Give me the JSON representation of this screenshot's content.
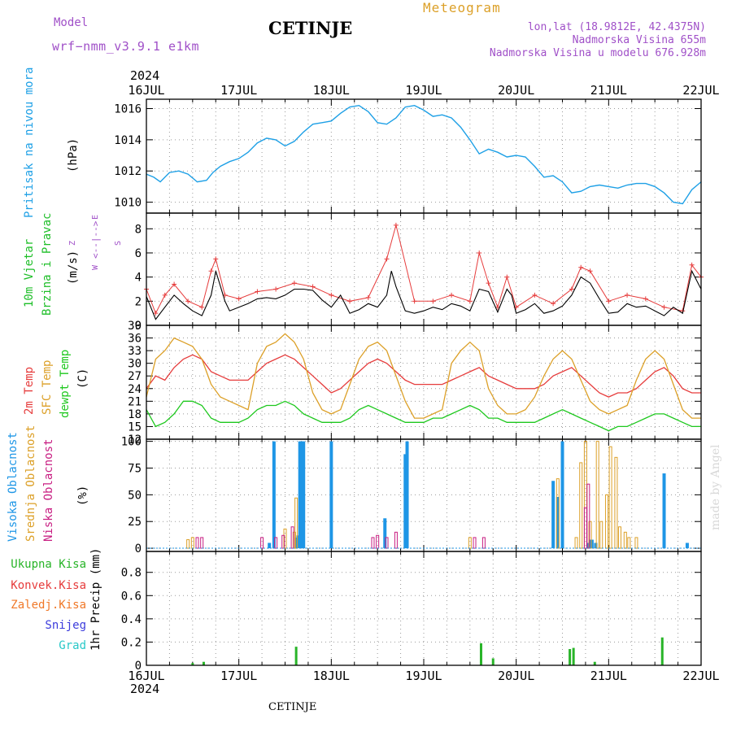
{
  "header": {
    "model_label": "Model",
    "model_value": "wrf−nmm_v3.9.1  e1km",
    "station": "CETINJE",
    "product": "Meteogram",
    "lonlat": "lon,lat (18.9812E, 42.4375N)",
    "elevation": "Nadmorska Visina 655m",
    "model_elevation": "Nadmorska Visina u modelu 676.928m",
    "year_top": "2024",
    "year_bottom": "2024",
    "footer_station": "CETINJE",
    "watermark": "made by Angel"
  },
  "colors": {
    "pressure": "#1ea0e6",
    "wind_label": "#1ebe28",
    "temp2m": "#e63c3c",
    "sfc": "#dca028",
    "dewpt": "#1ec81e",
    "high_cloud": "#1e96e6",
    "mid_cloud": "#dca028",
    "low_cloud": "#c81e82",
    "total_precip": "#28b428",
    "conv_precip": "#e63c3c",
    "frozen_precip": "#f07828",
    "snow": "#3c3cdc",
    "hail": "#28c8c8",
    "compass": "#a050c8"
  },
  "chart_data": [
    {
      "type": "line",
      "panel": "pressure",
      "ylabel_name": "Pritisak na nivou mora",
      "unit": "(hPa)",
      "x_ticks": [
        "16JUL",
        "17JUL",
        "18JUL",
        "19JUL",
        "20JUL",
        "21JUL",
        "22JUL"
      ],
      "xlim_days": [
        0,
        6
      ],
      "ylim": [
        1009.3,
        1016.6
      ],
      "y_ticks": [
        1010,
        1012,
        1014,
        1016
      ],
      "grid": true,
      "series": [
        {
          "x": [
            0,
            0.08,
            0.15,
            0.25,
            0.35,
            0.45,
            0.55,
            0.65,
            0.72,
            0.8,
            0.9,
            1.0,
            1.1,
            1.2,
            1.3,
            1.4,
            1.5,
            1.6,
            1.7,
            1.8,
            1.9,
            2.0,
            2.1,
            2.2,
            2.3,
            2.4,
            2.5,
            2.6,
            2.7,
            2.8,
            2.9,
            3.0,
            3.1,
            3.2,
            3.3,
            3.4,
            3.5,
            3.6,
            3.7,
            3.8,
            3.9,
            4.0,
            4.1,
            4.2,
            4.3,
            4.4,
            4.5,
            4.6,
            4.7,
            4.8,
            4.9,
            5.0,
            5.1,
            5.2,
            5.3,
            5.4,
            5.5,
            5.6,
            5.7,
            5.8,
            5.9,
            6.0
          ],
          "y": [
            1011.8,
            1011.6,
            1011.3,
            1011.9,
            1012.0,
            1011.8,
            1011.3,
            1011.4,
            1011.9,
            1012.3,
            1012.6,
            1012.8,
            1013.2,
            1013.8,
            1014.1,
            1014.0,
            1013.6,
            1013.9,
            1014.5,
            1015.0,
            1015.1,
            1015.2,
            1015.7,
            1016.1,
            1016.2,
            1015.8,
            1015.1,
            1015.0,
            1015.4,
            1016.1,
            1016.2,
            1015.9,
            1015.5,
            1015.6,
            1015.4,
            1014.8,
            1014.0,
            1013.1,
            1013.4,
            1013.2,
            1012.9,
            1013.0,
            1012.9,
            1012.3,
            1011.6,
            1011.7,
            1011.3,
            1010.6,
            1010.7,
            1011.0,
            1011.1,
            1011.0,
            1010.9,
            1011.1,
            1011.2,
            1011.2,
            1011.0,
            1010.6,
            1010.0,
            1009.9,
            1010.8,
            1011.3
          ]
        }
      ]
    },
    {
      "type": "line",
      "panel": "wind",
      "ylabel_name": "10m Vjetar",
      "ylabel_name2": "Brzina i Pravac",
      "unit": "(m/s)",
      "compass": {
        "n": "Z",
        "e": "E",
        "w": "W",
        "s": "S"
      },
      "ylim": [
        0,
        9.3
      ],
      "y_ticks": [
        0,
        2,
        4,
        6,
        8
      ],
      "grid": true,
      "series": [
        {
          "name": "speed",
          "x": [
            0,
            0.1,
            0.2,
            0.3,
            0.4,
            0.5,
            0.6,
            0.7,
            0.75,
            0.85,
            0.9,
            1.0,
            1.1,
            1.2,
            1.3,
            1.4,
            1.5,
            1.6,
            1.7,
            1.8,
            1.9,
            2.0,
            2.1,
            2.2,
            2.3,
            2.4,
            2.5,
            2.6,
            2.65,
            2.7,
            2.8,
            2.9,
            3.0,
            3.1,
            3.2,
            3.3,
            3.4,
            3.5,
            3.6,
            3.7,
            3.8,
            3.9,
            3.95,
            4.0,
            4.1,
            4.2,
            4.3,
            4.4,
            4.5,
            4.6,
            4.7,
            4.8,
            4.9,
            5.0,
            5.1,
            5.2,
            5.3,
            5.4,
            5.5,
            5.6,
            5.7,
            5.8,
            5.9,
            6.0
          ],
          "y": [
            2.4,
            0.5,
            1.5,
            2.5,
            1.8,
            1.2,
            0.8,
            2.5,
            4.5,
            2.0,
            1.2,
            1.5,
            1.8,
            2.2,
            2.3,
            2.2,
            2.5,
            3.0,
            3.0,
            2.9,
            2.1,
            1.5,
            2.5,
            1.0,
            1.3,
            1.8,
            1.5,
            2.5,
            4.5,
            3.2,
            1.2,
            1.0,
            1.2,
            1.5,
            1.3,
            1.8,
            1.6,
            1.2,
            3.0,
            2.8,
            1.1,
            3.0,
            2.5,
            1.0,
            1.3,
            1.8,
            1.0,
            1.2,
            1.6,
            2.5,
            4.0,
            3.5,
            2.2,
            1.0,
            1.1,
            1.8,
            1.5,
            1.6,
            1.2,
            0.8,
            1.5,
            1.0,
            4.5,
            3.0
          ]
        },
        {
          "name": "gust",
          "x": [
            0,
            0.1,
            0.2,
            0.3,
            0.45,
            0.6,
            0.7,
            0.75,
            0.85,
            1.0,
            1.2,
            1.4,
            1.6,
            1.8,
            2.0,
            2.2,
            2.4,
            2.6,
            2.7,
            2.9,
            3.1,
            3.3,
            3.5,
            3.6,
            3.7,
            3.8,
            3.9,
            4.0,
            4.2,
            4.4,
            4.6,
            4.7,
            4.8,
            5.0,
            5.2,
            5.4,
            5.6,
            5.8,
            5.9,
            6.0
          ],
          "y": [
            3.0,
            1.0,
            2.5,
            3.4,
            2.0,
            1.5,
            4.5,
            5.5,
            2.5,
            2.2,
            2.8,
            3.0,
            3.5,
            3.2,
            2.5,
            2.0,
            2.3,
            5.5,
            8.3,
            2.0,
            2.0,
            2.5,
            2.0,
            6.0,
            3.5,
            1.5,
            4.0,
            1.5,
            2.5,
            1.8,
            3.0,
            4.8,
            4.5,
            2.0,
            2.5,
            2.2,
            1.5,
            1.2,
            5.0,
            4.0
          ]
        }
      ]
    },
    {
      "type": "line",
      "panel": "temperature",
      "ylabel_names": [
        "2m Temp",
        "SFC Temp",
        "dewpt Temp"
      ],
      "unit": "(C)",
      "ylim": [
        12,
        39
      ],
      "y_ticks": [
        12,
        15,
        18,
        21,
        24,
        27,
        30,
        33,
        36,
        39
      ],
      "grid": true,
      "series": [
        {
          "name": "2m Temp",
          "x": [
            0,
            0.1,
            0.2,
            0.3,
            0.4,
            0.5,
            0.6,
            0.7,
            0.8,
            0.9,
            1.0,
            1.1,
            1.2,
            1.3,
            1.4,
            1.5,
            1.6,
            1.7,
            1.8,
            1.9,
            2.0,
            2.1,
            2.2,
            2.3,
            2.4,
            2.5,
            2.6,
            2.7,
            2.8,
            2.9,
            3.0,
            3.1,
            3.2,
            3.3,
            3.4,
            3.5,
            3.6,
            3.7,
            3.8,
            3.9,
            4.0,
            4.1,
            4.2,
            4.3,
            4.4,
            4.5,
            4.6,
            4.7,
            4.8,
            4.9,
            5.0,
            5.1,
            5.2,
            5.3,
            5.4,
            5.5,
            5.6,
            5.7,
            5.8,
            5.9,
            6.0
          ],
          "y": [
            24,
            27,
            26,
            29,
            31,
            32,
            31,
            28,
            27,
            26,
            26,
            26,
            28,
            30,
            31,
            32,
            31,
            29,
            27,
            25,
            23,
            24,
            26,
            28,
            30,
            31,
            30,
            28,
            26,
            25,
            25,
            25,
            25,
            26,
            27,
            28,
            29,
            27,
            26,
            25,
            24,
            24,
            24,
            25,
            27,
            28,
            29,
            27,
            25,
            23,
            22,
            23,
            23,
            24,
            26,
            28,
            29,
            27,
            24,
            23,
            23
          ]
        },
        {
          "name": "SFC Temp",
          "x": [
            0,
            0.1,
            0.2,
            0.3,
            0.4,
            0.5,
            0.6,
            0.7,
            0.8,
            0.9,
            1.0,
            1.1,
            1.2,
            1.3,
            1.4,
            1.5,
            1.6,
            1.7,
            1.8,
            1.9,
            2.0,
            2.1,
            2.2,
            2.3,
            2.4,
            2.5,
            2.6,
            2.7,
            2.8,
            2.9,
            3.0,
            3.1,
            3.2,
            3.3,
            3.4,
            3.5,
            3.6,
            3.7,
            3.8,
            3.9,
            4.0,
            4.1,
            4.2,
            4.3,
            4.4,
            4.5,
            4.6,
            4.7,
            4.8,
            4.9,
            5.0,
            5.1,
            5.2,
            5.3,
            5.4,
            5.5,
            5.6,
            5.7,
            5.8,
            5.9,
            6.0
          ],
          "y": [
            22,
            31,
            33,
            36,
            35,
            34,
            31,
            25,
            22,
            21,
            20,
            19,
            30,
            34,
            35,
            37,
            35,
            31,
            23,
            19,
            18,
            19,
            25,
            31,
            34,
            35,
            33,
            27,
            21,
            17,
            17,
            18,
            19,
            30,
            33,
            35,
            33,
            24,
            20,
            18,
            18,
            19,
            22,
            27,
            31,
            33,
            31,
            26,
            21,
            19,
            18,
            19,
            20,
            26,
            31,
            33,
            31,
            25,
            19,
            17,
            17
          ]
        },
        {
          "name": "dewpt Temp",
          "x": [
            0,
            0.1,
            0.2,
            0.3,
            0.4,
            0.5,
            0.6,
            0.7,
            0.8,
            0.9,
            1.0,
            1.1,
            1.2,
            1.3,
            1.4,
            1.5,
            1.6,
            1.7,
            1.8,
            1.9,
            2.0,
            2.1,
            2.2,
            2.3,
            2.4,
            2.5,
            2.6,
            2.7,
            2.8,
            2.9,
            3.0,
            3.1,
            3.2,
            3.3,
            3.4,
            3.5,
            3.6,
            3.7,
            3.8,
            3.9,
            4.0,
            4.1,
            4.2,
            4.3,
            4.4,
            4.5,
            4.6,
            4.7,
            4.8,
            4.9,
            5.0,
            5.1,
            5.2,
            5.3,
            5.4,
            5.5,
            5.6,
            5.7,
            5.8,
            5.9,
            6.0
          ],
          "y": [
            19,
            15,
            16,
            18,
            21,
            21,
            20,
            17,
            16,
            16,
            16,
            17,
            19,
            20,
            20,
            21,
            20,
            18,
            17,
            16,
            16,
            16,
            17,
            19,
            20,
            19,
            18,
            17,
            16,
            16,
            16,
            17,
            17,
            18,
            19,
            20,
            19,
            17,
            17,
            16,
            16,
            16,
            16,
            17,
            18,
            19,
            18,
            17,
            16,
            15,
            14,
            15,
            15,
            16,
            17,
            18,
            18,
            17,
            16,
            15,
            15
          ]
        }
      ]
    },
    {
      "type": "bar",
      "panel": "cloud",
      "ylabel_names": [
        "Visoka Oblacnost",
        "Srednja Oblacnost",
        "Niska Oblacnost"
      ],
      "unit": "(%)",
      "ylim": [
        -3,
        102
      ],
      "y_ticks": [
        0,
        25,
        50,
        75,
        100
      ],
      "grid": true,
      "series": [
        {
          "name": "Visoka Oblacnost",
          "x": [
            1.33,
            1.38,
            1.62,
            1.64,
            1.66,
            1.68,
            1.7,
            2.0,
            2.58,
            2.8,
            2.82,
            4.4,
            4.45,
            4.5,
            4.78,
            4.8,
            4.82,
            4.86,
            5.17,
            5.22,
            5.28,
            5.34,
            5.6,
            5.62,
            5.85,
            6.0
          ],
          "y": [
            5,
            100,
            10,
            12,
            100,
            100,
            100,
            100,
            28,
            88,
            100,
            63,
            48,
            100,
            5,
            8,
            8,
            5,
            0,
            0,
            0,
            0,
            70,
            0,
            5,
            0
          ]
        },
        {
          "name": "Srednja Oblacnost",
          "x": [
            0.45,
            0.5,
            1.5,
            1.6,
            1.62,
            3.5,
            4.45,
            4.65,
            4.7,
            4.75,
            4.8,
            4.88,
            4.92,
            4.98,
            5.02,
            5.08,
            5.12,
            5.18,
            5.22,
            5.3
          ],
          "y": [
            8,
            10,
            18,
            15,
            47,
            10,
            65,
            10,
            80,
            100,
            25,
            100,
            25,
            50,
            95,
            85,
            20,
            15,
            10,
            10
          ]
        },
        {
          "name": "Niska Oblacnost",
          "x": [
            0.55,
            0.6,
            1.25,
            1.4,
            1.48,
            1.58,
            2.45,
            2.5,
            2.6,
            2.7,
            3.55,
            3.65,
            4.75,
            4.78
          ],
          "y": [
            10,
            10,
            10,
            10,
            12,
            20,
            10,
            12,
            10,
            15,
            10,
            10,
            38,
            60
          ]
        }
      ]
    },
    {
      "type": "bar",
      "panel": "precip",
      "ylabel_names": [
        "Ukupna Kisa",
        "Konvek.Kisa",
        "Zaledj.Kisa",
        "Snijeg",
        "Grad"
      ],
      "unit": "1hr Precip (mm)",
      "ylim": [
        0,
        0.98
      ],
      "y_ticks": [
        0,
        0.2,
        0.4,
        0.6,
        0.8
      ],
      "grid": true,
      "series": [
        {
          "name": "Ukupna Kisa",
          "x": [
            0.5,
            0.62,
            1.62,
            3.62,
            3.75,
            4.58,
            4.62,
            4.85,
            5.58
          ],
          "y": [
            0.02,
            0.03,
            0.16,
            0.19,
            0.06,
            0.14,
            0.15,
            0.03,
            0.24
          ]
        }
      ]
    }
  ]
}
